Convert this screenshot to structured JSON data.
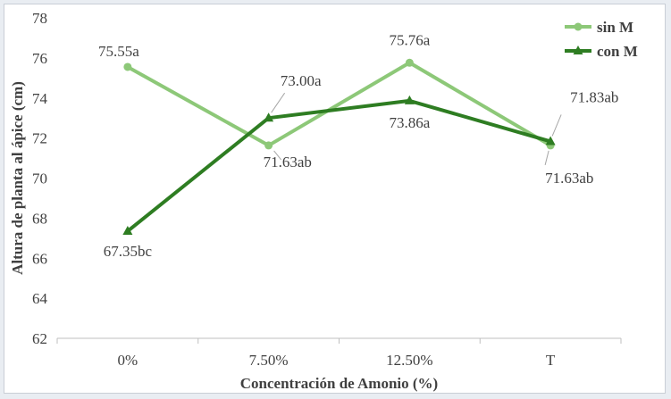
{
  "chart_data": {
    "type": "line",
    "title": "",
    "xlabel": "Concentración de Amonio (%)",
    "ylabel": "Altura de planta al ápice (cm)",
    "categories": [
      "0%",
      "7.50%",
      "12.50%",
      "T"
    ],
    "ylim": [
      62,
      78
    ],
    "yticks": [
      62,
      64,
      66,
      68,
      70,
      72,
      74,
      76,
      78
    ],
    "grid": false,
    "legend_position": "top-right",
    "series": [
      {
        "name": "sin M",
        "color": "#8dc878",
        "marker": "circle",
        "values": [
          75.55,
          71.63,
          75.76,
          71.63
        ],
        "labels": [
          "75.55a",
          "71.63ab",
          "75.76a",
          "71.63ab"
        ]
      },
      {
        "name": "con M",
        "color": "#2e7d22",
        "marker": "triangle",
        "values": [
          67.35,
          73.0,
          73.86,
          71.83
        ],
        "labels": [
          "67.35bc",
          "73.00a",
          "73.86a",
          "71.83ab"
        ]
      }
    ]
  }
}
